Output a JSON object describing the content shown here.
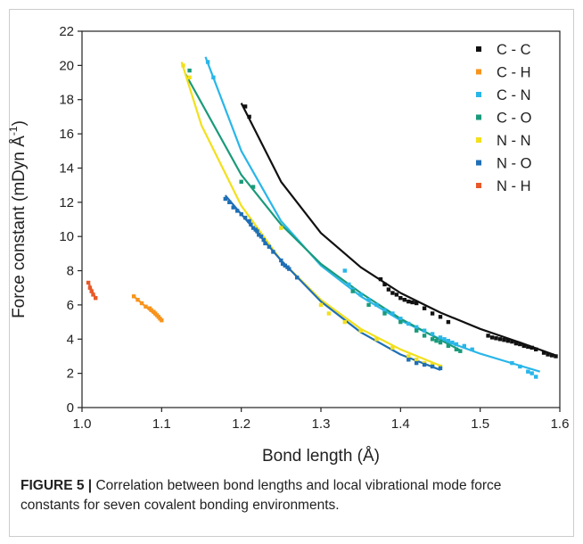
{
  "chart_data": {
    "type": "scatter",
    "xlabel": "Bond length (Å)",
    "ylabel_main": "Force constant (mDyn Å",
    "ylabel_sup": "-1",
    "ylabel_close": ")",
    "xlim": [
      1.0,
      1.6
    ],
    "ylim": [
      0,
      22
    ],
    "x_ticks": [
      1.0,
      1.1,
      1.2,
      1.3,
      1.4,
      1.5,
      1.6
    ],
    "x_tick_labels": [
      "1.0",
      "1.1",
      "1.2",
      "1.3",
      "1.4",
      "1.5",
      "1.6"
    ],
    "y_ticks": [
      0,
      2,
      4,
      6,
      8,
      10,
      12,
      14,
      16,
      18,
      20,
      22
    ],
    "y_tick_labels": [
      "0",
      "2",
      "4",
      "6",
      "8",
      "10",
      "12",
      "14",
      "16",
      "18",
      "20",
      "22"
    ],
    "grid": false,
    "legend_position": "top-right",
    "series": [
      {
        "name": "C - C",
        "color": "#111111",
        "points": [
          [
            1.205,
            17.6
          ],
          [
            1.21,
            17.0
          ],
          [
            1.375,
            7.5
          ],
          [
            1.38,
            7.2
          ],
          [
            1.385,
            6.9
          ],
          [
            1.39,
            6.7
          ],
          [
            1.395,
            6.6
          ],
          [
            1.4,
            6.4
          ],
          [
            1.405,
            6.3
          ],
          [
            1.41,
            6.2
          ],
          [
            1.415,
            6.15
          ],
          [
            1.42,
            6.1
          ],
          [
            1.43,
            5.8
          ],
          [
            1.44,
            5.5
          ],
          [
            1.45,
            5.3
          ],
          [
            1.46,
            5.0
          ],
          [
            1.51,
            4.2
          ],
          [
            1.515,
            4.1
          ],
          [
            1.52,
            4.05
          ],
          [
            1.525,
            4.0
          ],
          [
            1.53,
            3.95
          ],
          [
            1.535,
            3.9
          ],
          [
            1.54,
            3.85
          ],
          [
            1.545,
            3.75
          ],
          [
            1.55,
            3.7
          ],
          [
            1.555,
            3.6
          ],
          [
            1.56,
            3.55
          ],
          [
            1.565,
            3.5
          ],
          [
            1.57,
            3.4
          ],
          [
            1.58,
            3.2
          ],
          [
            1.585,
            3.1
          ],
          [
            1.59,
            3.05
          ],
          [
            1.595,
            3.0
          ]
        ],
        "fit": [
          [
            1.2,
            17.8
          ],
          [
            1.25,
            13.2
          ],
          [
            1.3,
            10.2
          ],
          [
            1.35,
            8.2
          ],
          [
            1.4,
            6.7
          ],
          [
            1.45,
            5.55
          ],
          [
            1.5,
            4.6
          ],
          [
            1.55,
            3.8
          ],
          [
            1.595,
            3.05
          ]
        ]
      },
      {
        "name": "C - H",
        "color": "#f7941d",
        "points": [
          [
            1.065,
            6.5
          ],
          [
            1.07,
            6.3
          ],
          [
            1.075,
            6.1
          ],
          [
            1.08,
            5.9
          ],
          [
            1.085,
            5.8
          ],
          [
            1.087,
            5.7
          ],
          [
            1.09,
            5.6
          ],
          [
            1.092,
            5.5
          ],
          [
            1.094,
            5.4
          ],
          [
            1.096,
            5.3
          ],
          [
            1.098,
            5.2
          ],
          [
            1.1,
            5.1
          ]
        ],
        "fit": [
          [
            1.065,
            6.5
          ],
          [
            1.1,
            5.1
          ]
        ]
      },
      {
        "name": "C - N",
        "color": "#29b6e8",
        "points": [
          [
            1.158,
            20.2
          ],
          [
            1.165,
            19.3
          ],
          [
            1.33,
            8.0
          ],
          [
            1.335,
            7.2
          ],
          [
            1.34,
            6.9
          ],
          [
            1.35,
            6.6
          ],
          [
            1.36,
            6.3
          ],
          [
            1.37,
            6.0
          ],
          [
            1.38,
            5.7
          ],
          [
            1.39,
            5.5
          ],
          [
            1.4,
            5.2
          ],
          [
            1.41,
            4.9
          ],
          [
            1.42,
            4.7
          ],
          [
            1.43,
            4.5
          ],
          [
            1.44,
            4.3
          ],
          [
            1.45,
            4.1
          ],
          [
            1.455,
            4.0
          ],
          [
            1.46,
            3.9
          ],
          [
            1.465,
            3.8
          ],
          [
            1.47,
            3.7
          ],
          [
            1.48,
            3.6
          ],
          [
            1.49,
            3.4
          ],
          [
            1.54,
            2.6
          ],
          [
            1.55,
            2.4
          ],
          [
            1.56,
            2.1
          ],
          [
            1.565,
            2.0
          ],
          [
            1.57,
            1.8
          ]
        ],
        "fit": [
          [
            1.155,
            20.5
          ],
          [
            1.2,
            15.0
          ],
          [
            1.25,
            10.9
          ],
          [
            1.3,
            8.3
          ],
          [
            1.35,
            6.5
          ],
          [
            1.4,
            5.1
          ],
          [
            1.45,
            4.0
          ],
          [
            1.5,
            3.15
          ],
          [
            1.55,
            2.45
          ],
          [
            1.575,
            2.1
          ]
        ]
      },
      {
        "name": "C - O",
        "color": "#1a9a7a",
        "points": [
          [
            1.135,
            19.7
          ],
          [
            1.2,
            13.2
          ],
          [
            1.215,
            12.9
          ],
          [
            1.34,
            6.8
          ],
          [
            1.36,
            6.0
          ],
          [
            1.38,
            5.5
          ],
          [
            1.4,
            5.0
          ],
          [
            1.42,
            4.5
          ],
          [
            1.43,
            4.2
          ],
          [
            1.44,
            4.0
          ],
          [
            1.445,
            3.9
          ],
          [
            1.45,
            3.8
          ],
          [
            1.46,
            3.6
          ],
          [
            1.47,
            3.4
          ],
          [
            1.475,
            3.3
          ]
        ],
        "fit": [
          [
            1.13,
            19.5
          ],
          [
            1.2,
            13.6
          ],
          [
            1.25,
            10.7
          ],
          [
            1.3,
            8.4
          ],
          [
            1.35,
            6.7
          ],
          [
            1.4,
            5.2
          ],
          [
            1.45,
            3.95
          ],
          [
            1.475,
            3.35
          ]
        ]
      },
      {
        "name": "N - N",
        "color": "#f2e01c",
        "points": [
          [
            1.127,
            20.0
          ],
          [
            1.135,
            19.3
          ],
          [
            1.25,
            10.5
          ],
          [
            1.3,
            6.0
          ],
          [
            1.31,
            5.5
          ],
          [
            1.33,
            5.0
          ],
          [
            1.35,
            4.5
          ],
          [
            1.37,
            4.0
          ],
          [
            1.39,
            3.5
          ],
          [
            1.41,
            3.0
          ],
          [
            1.42,
            2.8
          ],
          [
            1.43,
            2.6
          ],
          [
            1.44,
            2.5
          ],
          [
            1.45,
            2.4
          ]
        ],
        "fit": [
          [
            1.125,
            20.2
          ],
          [
            1.15,
            16.5
          ],
          [
            1.2,
            11.8
          ],
          [
            1.25,
            8.6
          ],
          [
            1.3,
            6.3
          ],
          [
            1.35,
            4.6
          ],
          [
            1.4,
            3.4
          ],
          [
            1.45,
            2.45
          ]
        ]
      },
      {
        "name": "N - O",
        "color": "#1f6fb5",
        "points": [
          [
            1.18,
            12.2
          ],
          [
            1.185,
            12.0
          ],
          [
            1.19,
            11.7
          ],
          [
            1.195,
            11.5
          ],
          [
            1.2,
            11.3
          ],
          [
            1.205,
            11.1
          ],
          [
            1.21,
            10.9
          ],
          [
            1.212,
            10.7
          ],
          [
            1.215,
            10.5
          ],
          [
            1.218,
            10.4
          ],
          [
            1.22,
            10.3
          ],
          [
            1.222,
            10.1
          ],
          [
            1.225,
            10.0
          ],
          [
            1.228,
            9.8
          ],
          [
            1.23,
            9.6
          ],
          [
            1.235,
            9.4
          ],
          [
            1.24,
            9.1
          ],
          [
            1.25,
            8.6
          ],
          [
            1.252,
            8.4
          ],
          [
            1.255,
            8.3
          ],
          [
            1.258,
            8.2
          ],
          [
            1.26,
            8.1
          ],
          [
            1.27,
            7.6
          ],
          [
            1.41,
            2.8
          ],
          [
            1.42,
            2.6
          ],
          [
            1.43,
            2.5
          ],
          [
            1.44,
            2.4
          ],
          [
            1.45,
            2.3
          ]
        ],
        "fit": [
          [
            1.18,
            12.4
          ],
          [
            1.2,
            11.3
          ],
          [
            1.25,
            8.6
          ],
          [
            1.3,
            6.2
          ],
          [
            1.35,
            4.4
          ],
          [
            1.4,
            3.1
          ],
          [
            1.45,
            2.2
          ]
        ]
      },
      {
        "name": "N - H",
        "color": "#e8592a",
        "points": [
          [
            1.008,
            7.3
          ],
          [
            1.01,
            7.0
          ],
          [
            1.012,
            6.8
          ],
          [
            1.014,
            6.6
          ],
          [
            1.017,
            6.4
          ]
        ],
        "fit": [
          [
            1.008,
            7.3
          ],
          [
            1.017,
            6.4
          ]
        ]
      }
    ]
  },
  "caption": {
    "label": "FIGURE 5 |",
    "text": " Correlation between bond lengths and local vibrational mode force constants for seven covalent bonding environments."
  }
}
